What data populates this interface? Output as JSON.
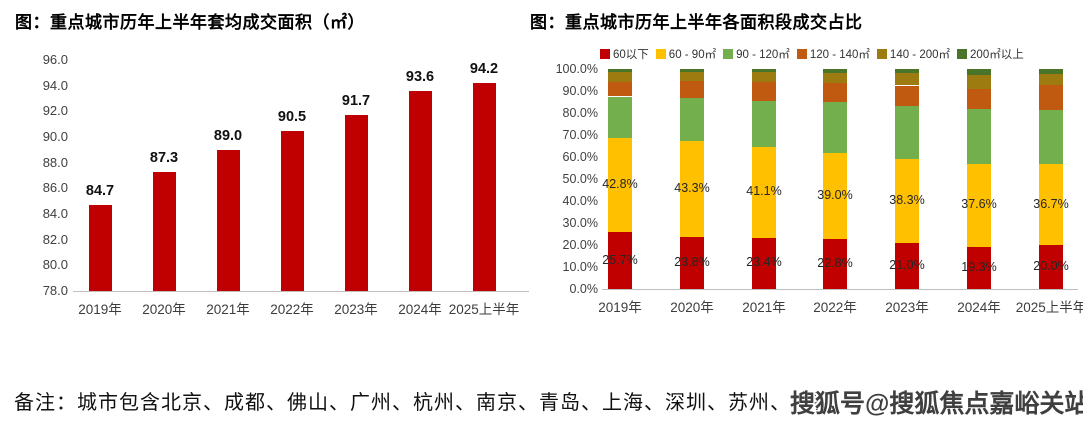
{
  "page": {
    "note": "备注：城市包含北京、成都、佛山、广州、杭州、南京、青岛、上海、深圳、苏州、无锡",
    "watermark": "搜狐号@搜狐焦点嘉峪关站"
  },
  "chart_data": [
    {
      "type": "bar",
      "title": "图：重点城市历年上半年套均成交面积（㎡）",
      "categories": [
        "2019年",
        "2020年",
        "2021年",
        "2022年",
        "2023年",
        "2024年",
        "2025上半年"
      ],
      "values": [
        84.7,
        87.3,
        89.0,
        90.5,
        91.7,
        93.6,
        94.2
      ],
      "value_labels": [
        "84.7",
        "87.3",
        "89.0",
        "90.5",
        "91.7",
        "93.6",
        "94.2"
      ],
      "y_ticks": [
        "96.0",
        "94.0",
        "92.0",
        "90.0",
        "88.0",
        "86.0",
        "84.0",
        "82.0",
        "80.0",
        "78.0"
      ],
      "ylim": [
        78.0,
        96.0
      ],
      "bar_color": "#C00000",
      "grid": false,
      "legend_position": "none"
    },
    {
      "type": "stacked_bar_percent",
      "title": "图：重点城市历年上半年各面积段成交占比",
      "categories": [
        "2019年",
        "2020年",
        "2021年",
        "2022年",
        "2023年",
        "2024年",
        "2025上半年"
      ],
      "series": [
        {
          "name": "60以下",
          "color": "#C00000",
          "values": [
            25.7,
            23.8,
            23.4,
            22.8,
            21.0,
            19.3,
            20.0
          ],
          "labels": [
            "25.7%",
            "23.8%",
            "23.4%",
            "22.8%",
            "21.0%",
            "19.3%",
            "20.0%"
          ]
        },
        {
          "name": "60 - 90㎡",
          "color": "#FFC000",
          "values": [
            42.8,
            43.3,
            41.1,
            39.0,
            38.3,
            37.6,
            36.7
          ],
          "labels": [
            "42.8%",
            "43.3%",
            "41.1%",
            "39.0%",
            "38.3%",
            "37.6%",
            "36.7%"
          ]
        },
        {
          "name": "90 - 120㎡",
          "color": "#73AF4D",
          "values": [
            19.0,
            19.9,
            21.0,
            23.0,
            24.0,
            25.0,
            24.6
          ]
        },
        {
          "name": "120 - 140㎡",
          "color": "#C05A11",
          "values": [
            6.5,
            7.5,
            8.5,
            8.7,
            9.2,
            9.0,
            11.6
          ]
        },
        {
          "name": "140 - 200㎡",
          "color": "#9E7B10",
          "values": [
            4.5,
            4.2,
            4.7,
            4.5,
            5.5,
            6.4,
            5.0
          ]
        },
        {
          "name": "200㎡以上",
          "color": "#4A7429",
          "values": [
            1.5,
            1.3,
            1.3,
            2.0,
            2.0,
            2.7,
            2.1
          ]
        }
      ],
      "y_ticks": [
        "100.0%",
        "90.0%",
        "80.0%",
        "70.0%",
        "60.0%",
        "50.0%",
        "40.0%",
        "30.0%",
        "20.0%",
        "10.0%",
        "0.0%"
      ],
      "ylim": [
        0,
        100
      ],
      "grid": false,
      "legend_position": "top"
    }
  ]
}
